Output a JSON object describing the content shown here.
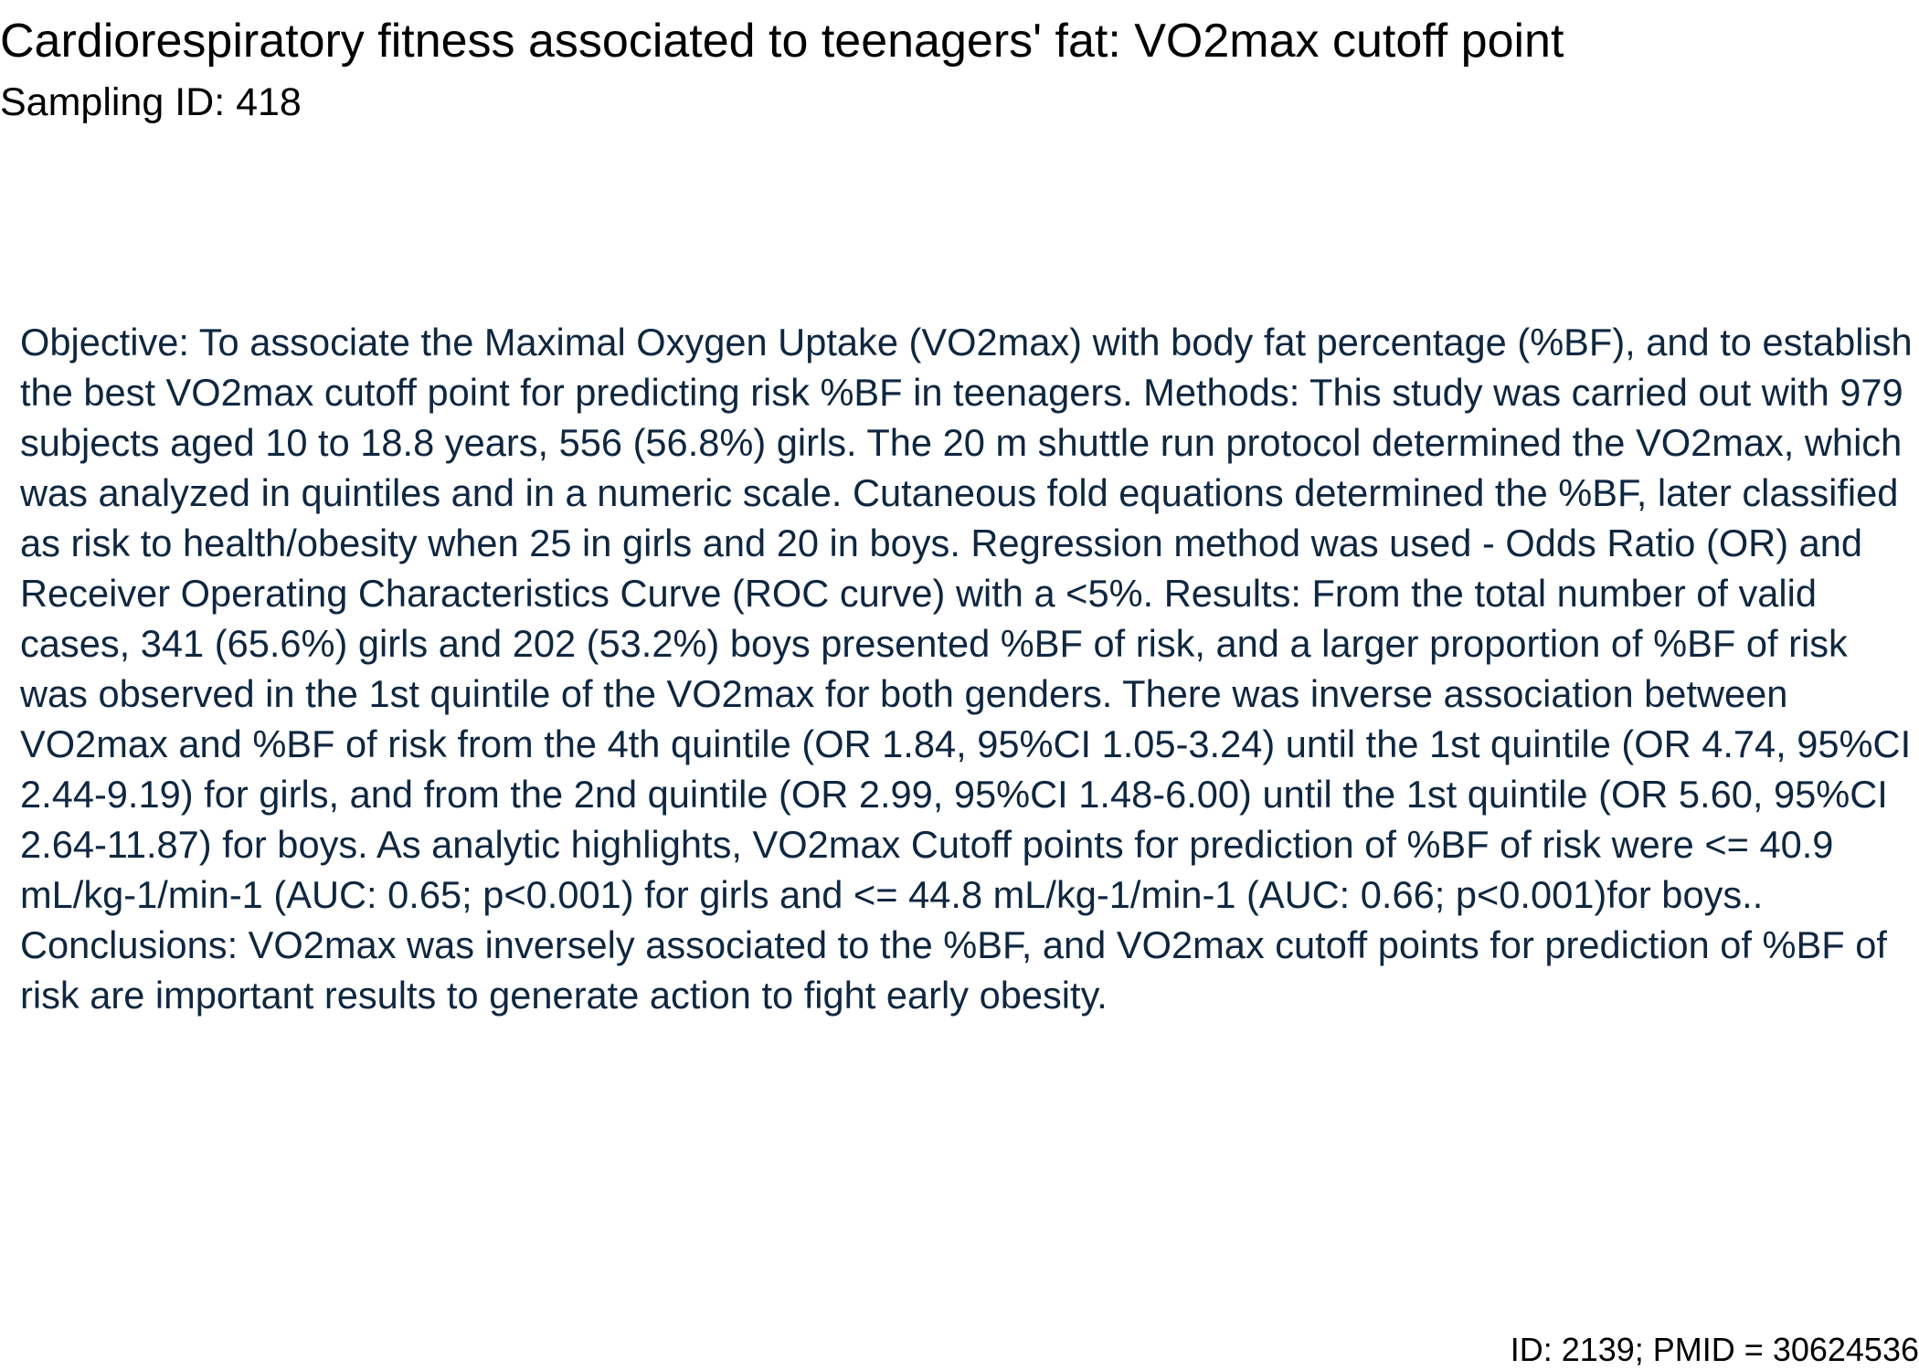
{
  "document": {
    "title": "Cardiorespiratory fitness associated to teenagers' fat: VO2max cutoff point",
    "subtitle": "Sampling ID: 418",
    "abstract": "Objective: To associate the Maximal Oxygen Uptake (VO2max) with body fat percentage (%BF), and to establish the best VO2max cutoff point for predicting risk %BF in teenagers. Methods: This study was carried out with 979 subjects aged 10 to 18.8 years, 556 (56.8%) girls. The 20 m shuttle run protocol determined the VO2max, which was analyzed in quintiles and in a numeric scale. Cutaneous fold equations determined the %BF, later classified as risk to health/obesity when 25 in girls and 20 in boys. Regression method was used - Odds Ratio (OR) and Receiver Operating Characteristics Curve (ROC curve) with a <5%. Results: From the total number of valid cases, 341 (65.6%) girls and 202 (53.2%) boys presented %BF of risk, and a larger proportion of %BF of risk was observed in the 1st quintile of the VO2max for both genders. There was inverse association between VO2max and %BF of risk from the 4th quintile (OR 1.84, 95%CI 1.05-3.24) until the 1st quintile (OR 4.74, 95%CI 2.44-9.19) for girls, and from the 2nd quintile (OR 2.99, 95%CI 1.48-6.00) until the 1st quintile (OR 5.60, 95%CI 2.64-11.87) for boys. As analytic highlights, VO2max Cutoff points for prediction of %BF of risk were <= 40.9 mL/kg-1/min-1 (AUC: 0.65; p<0.001) for girls and <= 44.8 mL/kg-1/min-1 (AUC: 0.66; p<0.001)for boys.. Conclusions: VO2max was inversely associated to the %BF, and VO2max cutoff points for prediction of %BF of risk are important results to generate action to fight early obesity.",
    "footer_id": "ID: 2139; PMID = 30624536"
  },
  "colors": {
    "title_text": "#000000",
    "body_text": "#0f2740",
    "background": "#ffffff"
  }
}
